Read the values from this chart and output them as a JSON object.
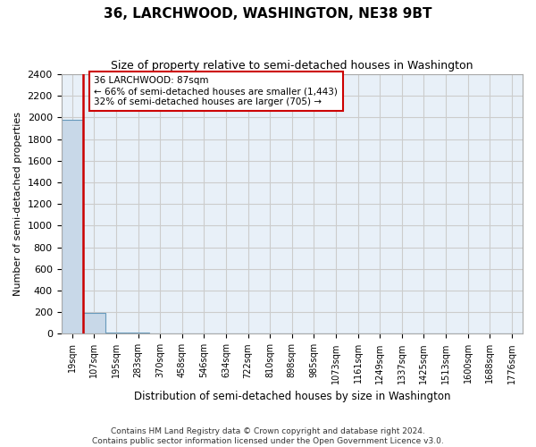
{
  "title": "36, LARCHWOOD, WASHINGTON, NE38 9BT",
  "subtitle": "Size of property relative to semi-detached houses in Washington",
  "xlabel": "Distribution of semi-detached houses by size in Washington",
  "ylabel": "Number of semi-detached properties",
  "footer_line1": "Contains HM Land Registry data © Crown copyright and database right 2024.",
  "footer_line2": "Contains public sector information licensed under the Open Government Licence v3.0.",
  "bin_labels": [
    "19sqm",
    "107sqm",
    "195sqm",
    "283sqm",
    "370sqm",
    "458sqm",
    "546sqm",
    "634sqm",
    "722sqm",
    "810sqm",
    "898sqm",
    "985sqm",
    "1073sqm",
    "1161sqm",
    "1249sqm",
    "1337sqm",
    "1425sqm",
    "1513sqm",
    "1600sqm",
    "1688sqm",
    "1776sqm"
  ],
  "bar_values": [
    1980,
    195,
    15,
    8,
    3,
    2,
    2,
    1,
    1,
    1,
    0,
    0,
    0,
    0,
    0,
    0,
    0,
    0,
    0,
    0,
    0
  ],
  "bar_color": "#c8d8e8",
  "bar_edge_color": "#6699bb",
  "annotation_line1": "36 LARCHWOOD: 87sqm",
  "annotation_line2": "← 66% of semi-detached houses are smaller (1,443)",
  "annotation_line3": "32% of semi-detached houses are larger (705) →",
  "annotation_box_color": "#ffffff",
  "annotation_box_edge": "#cc0000",
  "vline_color": "#cc0000",
  "vline_x": 0.5,
  "ylim": [
    0,
    2400
  ],
  "yticks": [
    0,
    200,
    400,
    600,
    800,
    1000,
    1200,
    1400,
    1600,
    1800,
    2000,
    2200,
    2400
  ],
  "grid_color": "#cccccc",
  "bg_color": "#e8f0f8"
}
